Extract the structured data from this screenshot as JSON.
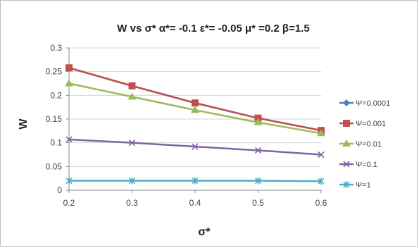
{
  "chart_data": {
    "type": "line",
    "title": "W vs σ*    α*= -0.1  ε*= -0.05  μ* =0.2  β=1.5",
    "xlabel": "σ*",
    "ylabel": "W",
    "x": [
      0.2,
      0.3,
      0.4,
      0.5,
      0.6
    ],
    "x_tick_labels": [
      "0.2",
      "0.3",
      "0.4",
      "0.5",
      "0.6"
    ],
    "ylim": [
      0,
      0.3
    ],
    "y_ticks": [
      0,
      0.05,
      0.1,
      0.15,
      0.2,
      0.25,
      0.3
    ],
    "y_tick_labels": [
      "0",
      "0.05",
      "0.1",
      "0.15",
      "0.2",
      "0.25",
      "0.3"
    ],
    "grid": "horizontal",
    "legend_position": "right",
    "series": [
      {
        "name": "Ψ=0.0001",
        "values": [
          0.258,
          0.22,
          0.184,
          0.152,
          0.126
        ],
        "color": "#4f81bd",
        "marker": "diamond"
      },
      {
        "name": "Ψ=0.001",
        "values": [
          0.258,
          0.22,
          0.184,
          0.152,
          0.126
        ],
        "color": "#c0504d",
        "marker": "square"
      },
      {
        "name": "Ψ=0.01",
        "values": [
          0.225,
          0.197,
          0.169,
          0.143,
          0.12
        ],
        "color": "#9bbb59",
        "marker": "triangle"
      },
      {
        "name": "Ψ=0.1",
        "values": [
          0.107,
          0.1,
          0.092,
          0.084,
          0.075
        ],
        "color": "#8064a2",
        "marker": "x"
      },
      {
        "name": "Ψ=1",
        "values": [
          0.02,
          0.02,
          0.02,
          0.02,
          0.019
        ],
        "color": "#4bacc6",
        "marker": "star"
      }
    ]
  }
}
